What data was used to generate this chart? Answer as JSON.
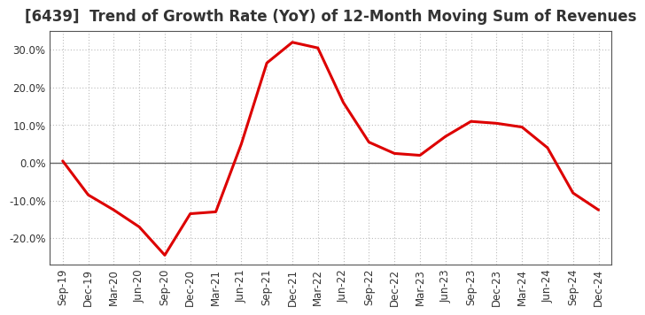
{
  "title": "[6439]  Trend of Growth Rate (YoY) of 12-Month Moving Sum of Revenues",
  "x_labels": [
    "Sep-19",
    "Dec-19",
    "Mar-20",
    "Jun-20",
    "Sep-20",
    "Dec-20",
    "Mar-21",
    "Jun-21",
    "Sep-21",
    "Dec-21",
    "Mar-22",
    "Jun-22",
    "Sep-22",
    "Dec-22",
    "Mar-23",
    "Jun-23",
    "Sep-23",
    "Dec-23",
    "Mar-24",
    "Jun-24",
    "Sep-24",
    "Dec-24"
  ],
  "y_values": [
    0.5,
    -8.5,
    -12.5,
    -17.0,
    -24.5,
    -13.5,
    -13.0,
    5.0,
    26.5,
    32.0,
    30.5,
    16.0,
    5.5,
    2.5,
    2.0,
    7.0,
    11.0,
    10.5,
    9.5,
    4.0,
    -8.0,
    -12.5
  ],
  "line_color": "#dd0000",
  "line_width": 2.2,
  "background_color": "#ffffff",
  "plot_bg_color": "#ffffff",
  "grid_color": "#bbbbbb",
  "zero_line_color": "#666666",
  "spine_color": "#555555",
  "ylim": [
    -27,
    35
  ],
  "yticks": [
    -20,
    -10,
    0,
    10,
    20,
    30
  ],
  "title_fontsize": 12,
  "title_color": "#333333",
  "tick_fontsize": 8.5,
  "tick_color": "#333333"
}
